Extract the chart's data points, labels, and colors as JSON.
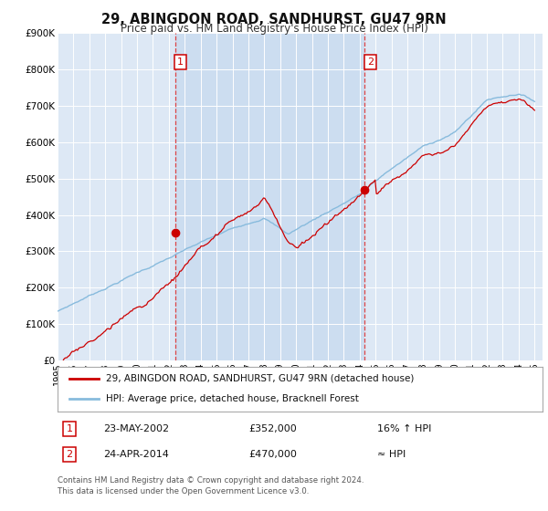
{
  "title": "29, ABINGDON ROAD, SANDHURST, GU47 9RN",
  "subtitle": "Price paid vs. HM Land Registry's House Price Index (HPI)",
  "background_color": "#ffffff",
  "plot_bg_color": "#dde8f5",
  "plot_bg_shaded": "#ccddf0",
  "grid_color": "#ffffff",
  "ylim": [
    0,
    900000
  ],
  "yticks": [
    0,
    100000,
    200000,
    300000,
    400000,
    500000,
    600000,
    700000,
    800000,
    900000
  ],
  "ytick_labels": [
    "£0",
    "£100K",
    "£200K",
    "£300K",
    "£400K",
    "£500K",
    "£600K",
    "£700K",
    "£800K",
    "£900K"
  ],
  "xlim_start": 1995.0,
  "xlim_end": 2025.5,
  "xticks": [
    1995,
    1996,
    1997,
    1998,
    1999,
    2000,
    2001,
    2002,
    2003,
    2004,
    2005,
    2006,
    2007,
    2008,
    2009,
    2010,
    2011,
    2012,
    2013,
    2014,
    2015,
    2016,
    2017,
    2018,
    2019,
    2020,
    2021,
    2022,
    2023,
    2024,
    2025
  ],
  "property_color": "#cc0000",
  "hpi_color": "#88bbdd",
  "sale1_x": 2002.39,
  "sale1_y": 352000,
  "sale1_label": "1",
  "sale2_x": 2014.32,
  "sale2_y": 470000,
  "sale2_label": "2",
  "vline_color": "#dd3333",
  "legend_label_property": "29, ABINGDON ROAD, SANDHURST, GU47 9RN (detached house)",
  "legend_label_hpi": "HPI: Average price, detached house, Bracknell Forest",
  "annotation1_date": "23-MAY-2002",
  "annotation1_price": "£352,000",
  "annotation1_hpi": "16% ↑ HPI",
  "annotation2_date": "24-APR-2014",
  "annotation2_price": "£470,000",
  "annotation2_hpi": "≈ HPI",
  "footer": "Contains HM Land Registry data © Crown copyright and database right 2024.\nThis data is licensed under the Open Government Licence v3.0."
}
